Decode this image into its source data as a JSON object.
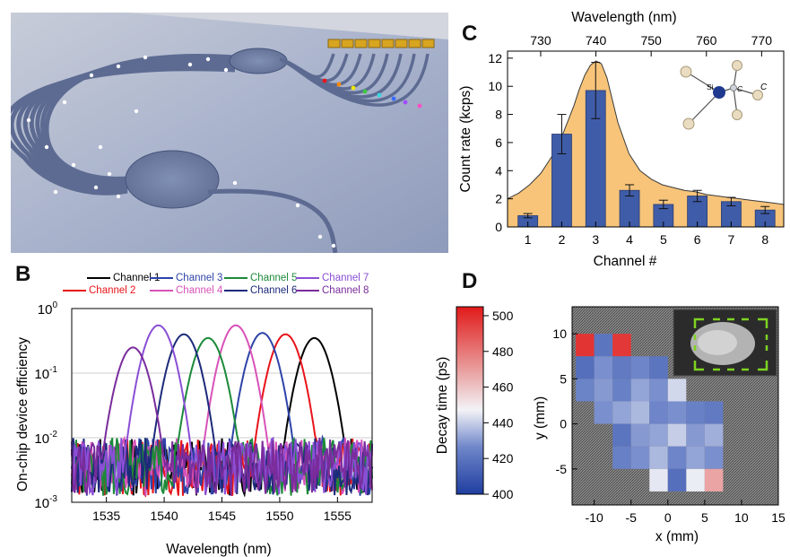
{
  "panels": {
    "A": "A",
    "B": "B",
    "C": "C",
    "D": "D"
  },
  "colors": {
    "ch1": "#000000",
    "ch2": "#e8141a",
    "ch3": "#2e43a8",
    "ch4": "#d852b8",
    "ch5": "#1c8a3a",
    "ch6": "#1d2a7a",
    "ch7": "#8a4fd6",
    "ch8": "#7a2c9c",
    "bar": "#3f5ca8",
    "area": "#f7c47a",
    "waveguide": "#6e7fa8",
    "chip_bg": "#a9b4cc"
  },
  "panel_b": {
    "legend": [
      "Channel 1",
      "Channel 2",
      "Channel 3",
      "Channel 4",
      "Channel 5",
      "Channel 6",
      "Channel 7",
      "Channel 8"
    ],
    "ylabel": "On-chip device efficiency",
    "xlabel": "Wavelength (nm)",
    "yticks": [
      "10",
      "10",
      "10",
      "10"
    ],
    "yexps": [
      "0",
      "-1",
      "-2",
      "-3"
    ],
    "xticks": [
      "1535",
      "1540",
      "1545",
      "1550",
      "1555"
    ]
  },
  "panel_c": {
    "top_xlabel": "Wavelength (nm)",
    "top_ticks": [
      "730",
      "740",
      "750",
      "760",
      "770"
    ],
    "ylabel": "Count rate (kcps)",
    "xlabel": "Channel #",
    "yticks": [
      "0",
      "2",
      "4",
      "6",
      "8",
      "10",
      "12"
    ],
    "xticks": [
      "1",
      "2",
      "3",
      "4",
      "5",
      "6",
      "7",
      "8"
    ],
    "molecule_labels": [
      "Si",
      "C",
      "C"
    ]
  },
  "panel_d": {
    "colorbar_label": "Decay time (ps)",
    "colorbar_ticks": [
      "500",
      "480",
      "460",
      "440",
      "420",
      "400"
    ],
    "ylabel": "y (mm)",
    "xlabel": "x (mm)",
    "yticks": [
      "10",
      "5",
      "0",
      "-5"
    ],
    "xticks": [
      "-10",
      "-5",
      "0",
      "5",
      "10",
      "15"
    ]
  },
  "chart_data": [
    {
      "type": "line",
      "title": "",
      "xlabel": "Wavelength (nm)",
      "ylabel": "On-chip device efficiency",
      "yscale": "log",
      "xlim": [
        1532,
        1558
      ],
      "ylim": [
        0.001,
        1
      ],
      "series": [
        {
          "name": "Channel 1",
          "peak_wavelength": 1553.0,
          "peak": 0.35
        },
        {
          "name": "Channel 2",
          "peak_wavelength": 1550.5,
          "peak": 0.4
        },
        {
          "name": "Channel 3",
          "peak_wavelength": 1548.5,
          "peak": 0.42
        },
        {
          "name": "Channel 4",
          "peak_wavelength": 1546.2,
          "peak": 0.55
        },
        {
          "name": "Channel 5",
          "peak_wavelength": 1543.8,
          "peak": 0.35
        },
        {
          "name": "Channel 6",
          "peak_wavelength": 1541.7,
          "peak": 0.4
        },
        {
          "name": "Channel 7",
          "peak_wavelength": 1539.5,
          "peak": 0.55
        },
        {
          "name": "Channel 8",
          "peak_wavelength": 1537.3,
          "peak": 0.25
        }
      ]
    },
    {
      "type": "bar",
      "title": "",
      "xlabel": "Channel #",
      "ylabel": "Count rate (kcps)",
      "categories": [
        "1",
        "2",
        "3",
        "4",
        "5",
        "6",
        "7",
        "8"
      ],
      "values": [
        0.8,
        6.6,
        9.7,
        2.6,
        1.6,
        2.2,
        1.8,
        1.2
      ],
      "errors": [
        0.15,
        1.4,
        2.0,
        0.4,
        0.3,
        0.4,
        0.3,
        0.25
      ],
      "ylim": [
        0,
        12.5
      ],
      "top_axis": {
        "label": "Wavelength (nm)",
        "range": [
          724,
          774
        ]
      },
      "spectrum": {
        "wavelength": [
          724,
          726,
          728,
          730,
          732,
          734,
          736,
          737,
          738,
          739,
          740,
          741,
          742,
          743,
          744,
          746,
          748,
          750,
          752,
          754,
          756,
          758,
          760,
          762,
          764,
          766,
          768,
          770,
          772,
          774
        ],
        "counts": [
          2.0,
          2.4,
          3.0,
          3.8,
          5.0,
          6.6,
          8.6,
          9.8,
          10.8,
          11.5,
          11.8,
          11.6,
          10.6,
          9.0,
          7.4,
          5.2,
          4.0,
          3.4,
          3.0,
          2.8,
          2.6,
          2.5,
          2.3,
          2.2,
          2.1,
          2.0,
          1.9,
          1.8,
          1.7,
          1.6
        ]
      }
    },
    {
      "type": "heatmap",
      "title": "",
      "xlabel": "x (mm)",
      "ylabel": "y (mm)",
      "xlim": [
        -13,
        15
      ],
      "ylim": [
        -9,
        13
      ],
      "colorbar": {
        "label": "Decay time (ps)",
        "range": [
          400,
          505
        ]
      },
      "cell_size_mm": 2.5,
      "x_centers": [
        -11.25,
        -8.75,
        -6.25,
        -3.75,
        -1.25,
        1.25,
        3.75,
        6.25
      ],
      "y_centers": [
        8.75,
        6.25,
        3.75,
        1.25,
        -1.25,
        -3.75,
        -6.25
      ],
      "values": [
        [
          498,
          420,
          497,
          null,
          null,
          null,
          null,
          null
        ],
        [
          418,
          428,
          422,
          426,
          420,
          null,
          null,
          null
        ],
        [
          425,
          430,
          424,
          432,
          428,
          442,
          null,
          null
        ],
        [
          null,
          428,
          432,
          436,
          426,
          428,
          424,
          422
        ],
        [
          null,
          null,
          420,
          430,
          432,
          440,
          430,
          434
        ],
        [
          null,
          null,
          424,
          428,
          436,
          426,
          432,
          428
        ],
        [
          null,
          null,
          null,
          null,
          445,
          418,
          446,
          468
        ]
      ]
    }
  ]
}
